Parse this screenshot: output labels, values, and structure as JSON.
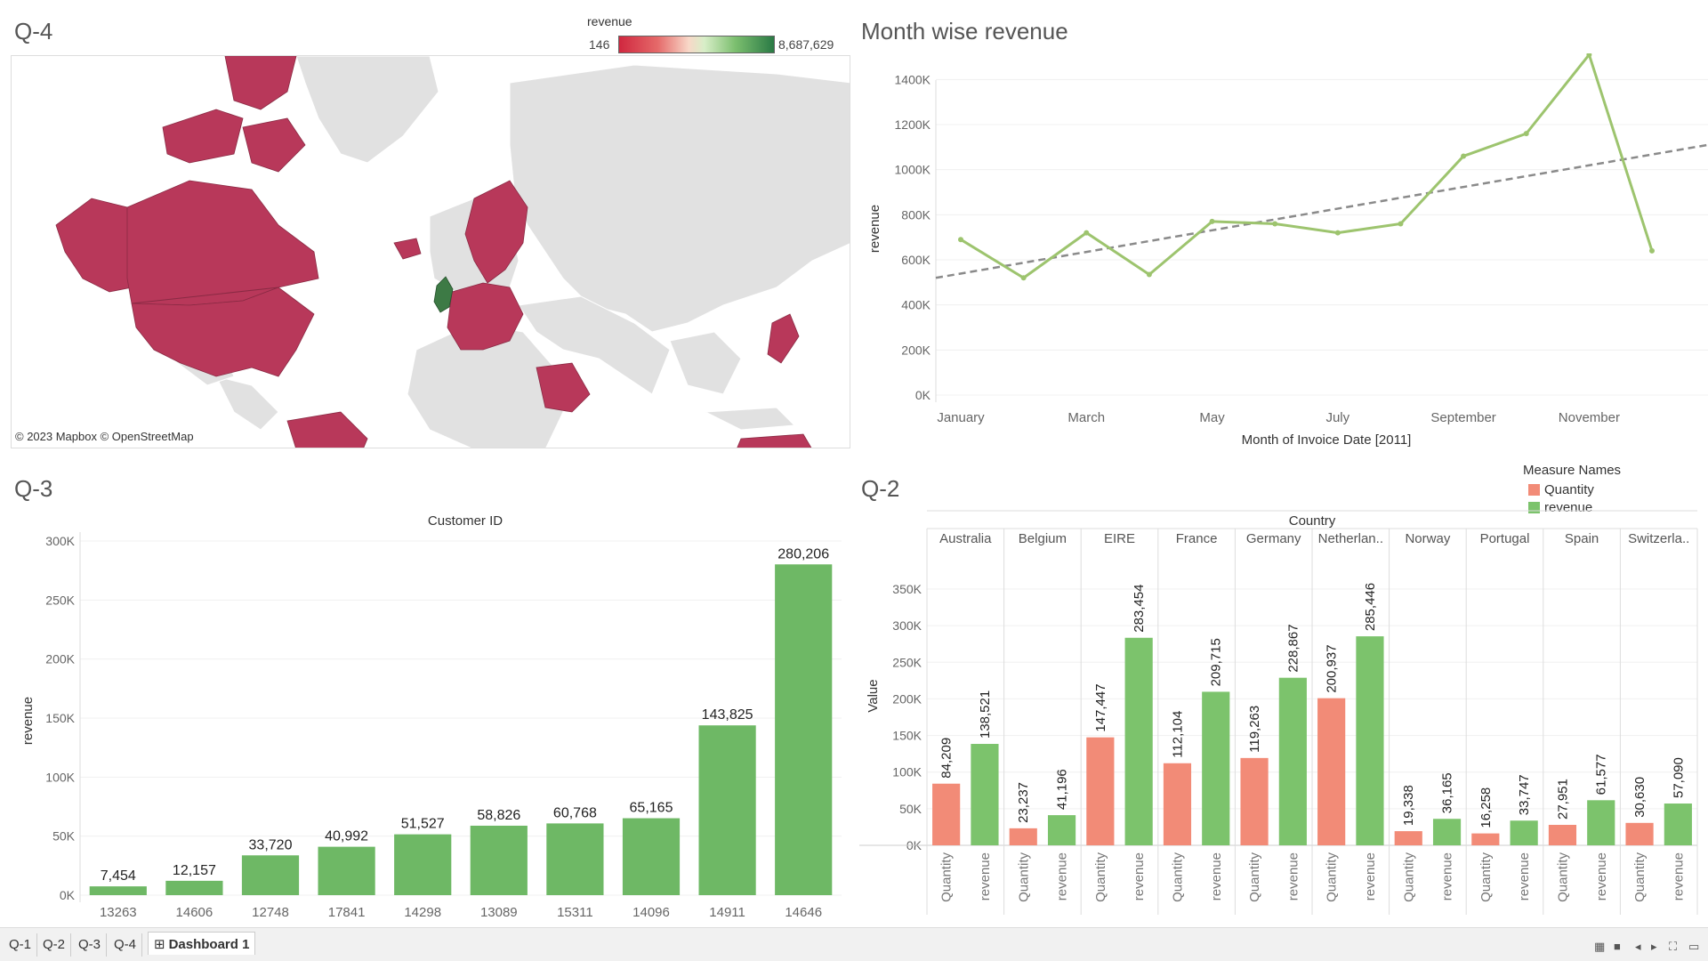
{
  "q4": {
    "title": "Q-4",
    "legend_title": "revenue",
    "legend_min": "146",
    "legend_max": "8,687,629",
    "attribution": "© 2023 Mapbox © OpenStreetMap",
    "highlight_color": "#b8385a",
    "top_color": "#3d7a45"
  },
  "chart_data": [
    {
      "type": "line",
      "title": "Month wise revenue",
      "xlabel": "Month of Invoice Date [2011]",
      "ylabel": "revenue",
      "x": [
        "January",
        "February",
        "March",
        "April",
        "May",
        "June",
        "July",
        "August",
        "September",
        "October",
        "November",
        "December"
      ],
      "x_tick_labels": [
        "January",
        "March",
        "May",
        "July",
        "September",
        "November"
      ],
      "values": [
        690000,
        520000,
        720000,
        535000,
        770000,
        760000,
        720000,
        760000,
        1060000,
        1160000,
        1510000,
        640000
      ],
      "trend_line": {
        "style": "dashed",
        "start": 520000,
        "end": 1110000
      },
      "y_ticks": [
        "0K",
        "200K",
        "400K",
        "600K",
        "800K",
        "1000K",
        "1200K",
        "1400K"
      ],
      "ylim": [
        0,
        1500000
      ],
      "color": "#9dc46e"
    },
    {
      "type": "bar",
      "panel_title": "Q-3",
      "header": "Customer ID",
      "ylabel": "revenue",
      "categories": [
        "13263",
        "14606",
        "12748",
        "17841",
        "14298",
        "13089",
        "15311",
        "14096",
        "14911",
        "14646"
      ],
      "values": [
        7454,
        12157,
        33720,
        40992,
        51527,
        58826,
        60768,
        65165,
        143825,
        280206
      ],
      "labels": [
        "7,454",
        "12,157",
        "33,720",
        "40,992",
        "51,527",
        "58,826",
        "60,768",
        "65,165",
        "143,825",
        "280,206"
      ],
      "y_ticks": [
        "0K",
        "50K",
        "100K",
        "150K",
        "200K",
        "250K",
        "300K"
      ],
      "ylim": [
        0,
        300000
      ],
      "color": "#6eb865"
    },
    {
      "type": "bar",
      "panel_title": "Q-2",
      "header": "Country",
      "ylabel": "Value",
      "legend_title": "Measure Names",
      "categories": [
        "Australia",
        "Belgium",
        "EIRE",
        "France",
        "Germany",
        "Netherlan..",
        "Norway",
        "Portugal",
        "Spain",
        "Switzerla.."
      ],
      "series": [
        {
          "name": "Quantity",
          "color": "#f28b77",
          "values": [
            84209,
            23237,
            147447,
            112104,
            119263,
            200937,
            19338,
            16258,
            27951,
            30630
          ],
          "labels": [
            "84,209",
            "23,237",
            "147,447",
            "112,104",
            "119,263",
            "200,937",
            "19,338",
            "16,258",
            "27,951",
            "30,630"
          ]
        },
        {
          "name": "revenue",
          "color": "#7cc36c",
          "values": [
            138521,
            41196,
            283454,
            209715,
            228867,
            285446,
            36165,
            33747,
            61577,
            57090
          ],
          "labels": [
            "138,521",
            "41,196",
            "283,454",
            "209,715",
            "228,867",
            "285,446",
            "36,165",
            "33,747",
            "61,577",
            "57,090"
          ]
        }
      ],
      "y_ticks": [
        "0K",
        "50K",
        "100K",
        "150K",
        "200K",
        "250K",
        "300K",
        "350K"
      ],
      "ylim": [
        0,
        350000
      ]
    }
  ],
  "tabs": [
    "Q-1",
    "Q-2",
    "Q-3",
    "Q-4"
  ],
  "active_tab": "Dashboard 1"
}
